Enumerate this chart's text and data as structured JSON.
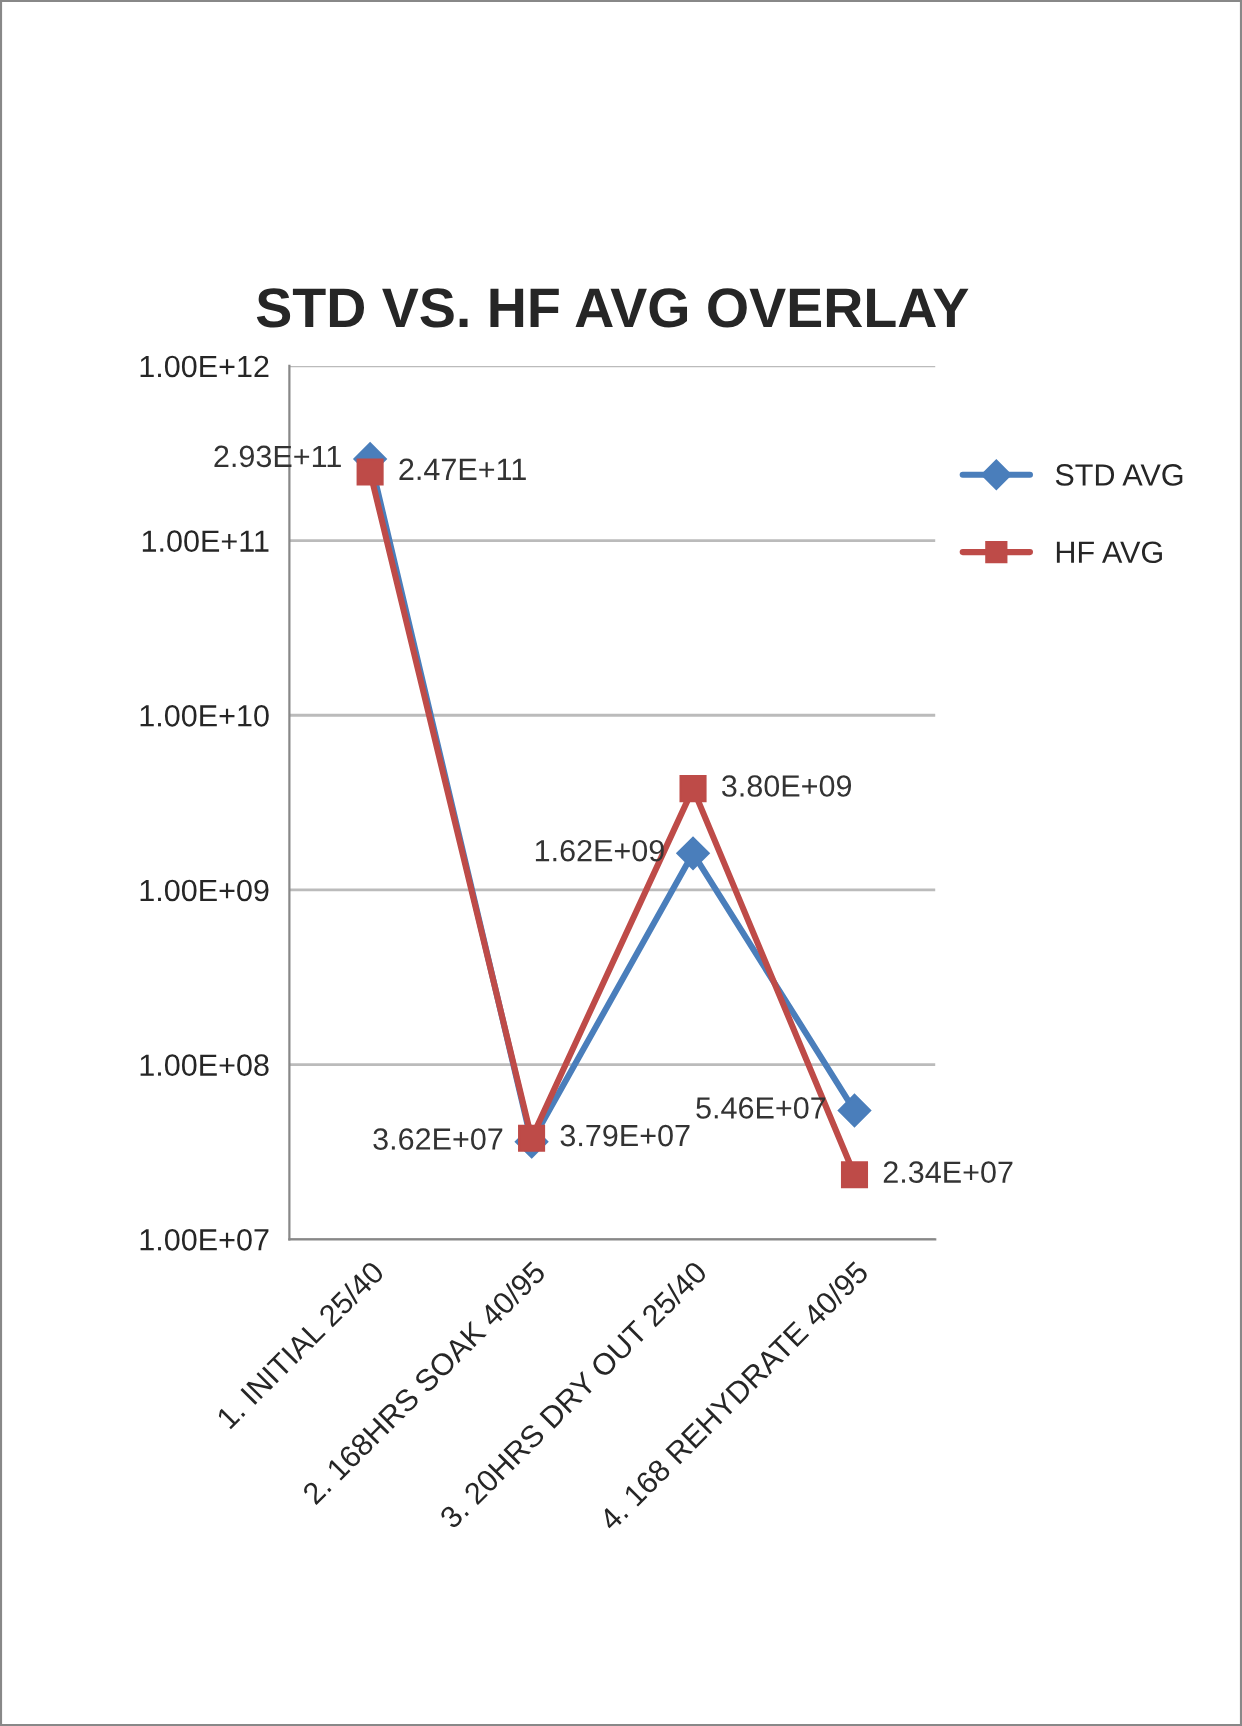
{
  "chart_data": {
    "type": "line",
    "title": "STD VS. HF AVG OVERLAY",
    "categories": [
      "1. INITIAL 25/40",
      "2. 168HRS SOAK 40/95",
      "3. 20HRS DRY OUT 25/40",
      "4. 168 REHYDRATE 40/95"
    ],
    "series": [
      {
        "name": "STD AVG",
        "color": "#4a7ebb",
        "marker": "diamond",
        "values": [
          293000000000.0,
          36200000.0,
          1620000000.0,
          54600000.0
        ],
        "value_labels": [
          "2.93E+11",
          "3.62E+07",
          "1.62E+09",
          "5.46E+07"
        ]
      },
      {
        "name": "HF AVG",
        "color": "#be4b48",
        "marker": "square",
        "values": [
          247000000000.0,
          37900000.0,
          3800000000.0,
          23400000.0
        ],
        "value_labels": [
          "2.47E+11",
          "3.79E+07",
          "3.80E+09",
          "2.34E+07"
        ]
      }
    ],
    "log": "y",
    "ylim": [
      10000000.0,
      1000000000000.0
    ],
    "yticks": [
      {
        "value": 10000000.0,
        "label": "1.00E+07"
      },
      {
        "value": 100000000.0,
        "label": "1.00E+08"
      },
      {
        "value": 1000000000.0,
        "label": "1.00E+09"
      },
      {
        "value": 10000000000.0,
        "label": "1.00E+10"
      },
      {
        "value": 100000000000.0,
        "label": "1.00E+11"
      },
      {
        "value": 1000000000000.0,
        "label": "1.00E+12"
      }
    ],
    "grid": "y",
    "legend": "top right",
    "line_style": "solid"
  }
}
